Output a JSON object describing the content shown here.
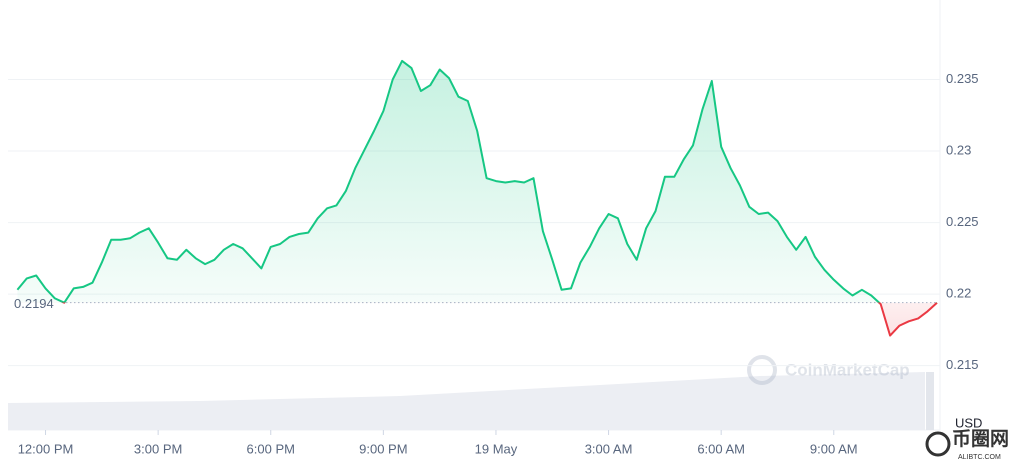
{
  "chart_data": {
    "type": "line",
    "values": [
      null,
      0.2203,
      0.2211,
      0.2213,
      0.2204,
      0.2197,
      0.2194,
      0.2204,
      0.2205,
      0.2208,
      0.2222,
      0.2238,
      0.2238,
      0.2239,
      0.2243,
      0.2246,
      0.2236,
      0.2225,
      0.2224,
      0.2231,
      0.2225,
      0.2221,
      0.2224,
      0.2231,
      0.2235,
      0.2232,
      0.2225,
      0.2218,
      0.2233,
      0.2235,
      0.224,
      0.2242,
      0.2243,
      0.2253,
      0.226,
      0.2262,
      0.2272,
      0.2288,
      0.2301,
      0.2314,
      0.2328,
      0.235,
      0.2363,
      0.2358,
      0.2342,
      0.2346,
      0.2357,
      0.2351,
      0.2338,
      0.2335,
      0.2314,
      0.2281,
      0.2279,
      0.2278,
      0.2279,
      0.2278,
      0.2281,
      0.2244,
      0.2224,
      0.2203,
      0.2204,
      0.2222,
      0.2233,
      0.2246,
      0.2256,
      0.2253,
      0.2235,
      0.2224,
      0.2246,
      0.2258,
      0.2282,
      0.2282,
      0.2294,
      0.2304,
      0.2329,
      0.2349,
      0.2303,
      0.2288,
      0.2276,
      0.2261,
      0.2256,
      0.2257,
      0.2251,
      0.224,
      0.2231,
      0.224,
      0.2226,
      0.2217,
      0.221,
      0.2204,
      0.2199,
      0.2203,
      0.2199,
      0.2193,
      0.2171,
      0.2178,
      0.2181,
      0.2183,
      0.2188,
      0.2194
    ],
    "up_color": "#16c784",
    "down_color": "#ea3943",
    "baseline": 0.2194,
    "ylim": [
      0.2105,
      0.24
    ],
    "yticks": [
      0.215,
      0.22,
      0.225,
      0.23,
      0.235
    ],
    "xticks": [
      {
        "value": 4,
        "label": "12:00 PM"
      },
      {
        "value": 16,
        "label": "3:00 PM"
      },
      {
        "value": 28,
        "label": "6:00 PM"
      },
      {
        "value": 40,
        "label": "9:00 PM"
      },
      {
        "value": 52,
        "label": "19 May"
      },
      {
        "value": 64,
        "label": "3:00 AM"
      },
      {
        "value": 76,
        "label": "6:00 AM"
      },
      {
        "value": 88,
        "label": "9:00 AM"
      }
    ],
    "grid": true,
    "currency": "USD",
    "watermark": "CoinMarketCap",
    "logo_text": "币圈网",
    "logo_subtext": "ALIBTC.COM"
  }
}
